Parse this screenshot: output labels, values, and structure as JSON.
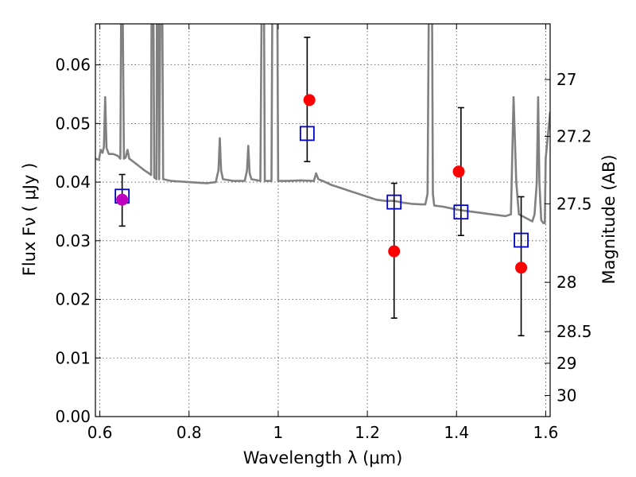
{
  "chart_data": {
    "type": "scatter",
    "xlabel": "Wavelength  λ (μm)",
    "ylabel": "Flux  Fν  ( μJy )",
    "right_ylabel": "Magnitude (AB)",
    "xlim": [
      0.59,
      1.61
    ],
    "ylim": [
      0.0,
      0.067
    ],
    "x_ticks": [
      0.6,
      0.8,
      1.0,
      1.2,
      1.4,
      1.6
    ],
    "x_tick_labels": [
      "0.6",
      "0.8",
      "1",
      "1.2",
      "1.4",
      "1.6"
    ],
    "y_ticks": [
      0.0,
      0.01,
      0.02,
      0.03,
      0.04,
      0.05,
      0.06
    ],
    "y_tick_labels": [
      "0.00",
      "0.01",
      "0.02",
      "0.03",
      "0.04",
      "0.05",
      "0.06"
    ],
    "right_ticks": [
      {
        "label": "27",
        "flux": 0.0575
      },
      {
        "label": "27.2",
        "flux": 0.0478
      },
      {
        "label": "27.5",
        "flux": 0.0363
      },
      {
        "label": "28",
        "flux": 0.0229
      },
      {
        "label": "28.5",
        "flux": 0.0145
      },
      {
        "label": "29",
        "flux": 0.0091
      },
      {
        "label": "30",
        "flux": 0.0036
      }
    ],
    "grid": true,
    "series": [
      {
        "marker": "circle",
        "color": "#ff0000",
        "points": [
          {
            "x": 0.65,
            "y": 0.037,
            "color": "#bf00bf"
          },
          {
            "x": 1.07,
            "y": 0.054
          },
          {
            "x": 1.26,
            "y": 0.0282
          },
          {
            "x": 1.405,
            "y": 0.0418
          },
          {
            "x": 1.545,
            "y": 0.0254
          }
        ]
      },
      {
        "marker": "square",
        "color": "#0000cc",
        "points": [
          {
            "x": 0.65,
            "y": 0.0376,
            "err_lo": 0.0325,
            "err_hi": 0.0413
          },
          {
            "x": 1.065,
            "y": 0.0483,
            "err_lo": 0.0435,
            "err_hi": 0.0647
          },
          {
            "x": 1.26,
            "y": 0.0366,
            "err_lo": 0.0168,
            "err_hi": 0.0398
          },
          {
            "x": 1.41,
            "y": 0.0349,
            "err_lo": 0.0309,
            "err_hi": 0.0527
          },
          {
            "x": 1.545,
            "y": 0.0301,
            "err_lo": 0.0138,
            "err_hi": 0.0375
          }
        ]
      },
      {
        "marker": "line",
        "color": "#808080",
        "points": [
          [
            0.59,
            0.044
          ],
          [
            0.598,
            0.0438
          ],
          [
            0.602,
            0.0455
          ],
          [
            0.606,
            0.045
          ],
          [
            0.609,
            0.046
          ],
          [
            0.612,
            0.0545
          ],
          [
            0.615,
            0.0458
          ],
          [
            0.62,
            0.0448
          ],
          [
            0.63,
            0.0448
          ],
          [
            0.64,
            0.0445
          ],
          [
            0.646,
            0.044
          ],
          [
            0.648,
            0.072
          ],
          [
            0.651,
            0.072
          ],
          [
            0.654,
            0.044
          ],
          [
            0.658,
            0.0442
          ],
          [
            0.662,
            0.0455
          ],
          [
            0.666,
            0.044
          ],
          [
            0.68,
            0.0432
          ],
          [
            0.69,
            0.0426
          ],
          [
            0.7,
            0.042
          ],
          [
            0.71,
            0.0415
          ],
          [
            0.715,
            0.0412
          ],
          [
            0.716,
            0.072
          ],
          [
            0.72,
            0.072
          ],
          [
            0.722,
            0.0408
          ],
          [
            0.727,
            0.0405
          ],
          [
            0.728,
            0.072
          ],
          [
            0.731,
            0.072
          ],
          [
            0.733,
            0.0405
          ],
          [
            0.736,
            0.072
          ],
          [
            0.74,
            0.072
          ],
          [
            0.742,
            0.0405
          ],
          [
            0.76,
            0.0402
          ],
          [
            0.78,
            0.0401
          ],
          [
            0.8,
            0.04
          ],
          [
            0.82,
            0.0399
          ],
          [
            0.84,
            0.0398
          ],
          [
            0.86,
            0.04
          ],
          [
            0.866,
            0.042
          ],
          [
            0.869,
            0.0475
          ],
          [
            0.872,
            0.042
          ],
          [
            0.876,
            0.0405
          ],
          [
            0.9,
            0.0402
          ],
          [
            0.925,
            0.0402
          ],
          [
            0.93,
            0.042
          ],
          [
            0.933,
            0.0462
          ],
          [
            0.936,
            0.0415
          ],
          [
            0.94,
            0.0405
          ],
          [
            0.96,
            0.0402
          ],
          [
            0.963,
            0.072
          ],
          [
            0.968,
            0.072
          ],
          [
            0.97,
            0.0402
          ],
          [
            0.985,
            0.0402
          ],
          [
            0.987,
            0.072
          ],
          [
            0.998,
            0.072
          ],
          [
            1.0,
            0.0402
          ],
          [
            1.02,
            0.0402
          ],
          [
            1.05,
            0.0403
          ],
          [
            1.08,
            0.0402
          ],
          [
            1.085,
            0.0415
          ],
          [
            1.09,
            0.0405
          ],
          [
            1.1,
            0.0402
          ],
          [
            1.12,
            0.0395
          ],
          [
            1.14,
            0.039
          ],
          [
            1.16,
            0.0385
          ],
          [
            1.18,
            0.038
          ],
          [
            1.2,
            0.0375
          ],
          [
            1.22,
            0.037
          ],
          [
            1.24,
            0.0368
          ],
          [
            1.26,
            0.0368
          ],
          [
            1.28,
            0.0365
          ],
          [
            1.3,
            0.0363
          ],
          [
            1.32,
            0.0362
          ],
          [
            1.33,
            0.0362
          ],
          [
            1.335,
            0.038
          ],
          [
            1.338,
            0.072
          ],
          [
            1.345,
            0.072
          ],
          [
            1.347,
            0.038
          ],
          [
            1.35,
            0.036
          ],
          [
            1.37,
            0.0358
          ],
          [
            1.39,
            0.0355
          ],
          [
            1.41,
            0.0352
          ],
          [
            1.43,
            0.035
          ],
          [
            1.45,
            0.0348
          ],
          [
            1.47,
            0.0346
          ],
          [
            1.49,
            0.0344
          ],
          [
            1.51,
            0.0342
          ],
          [
            1.522,
            0.0345
          ],
          [
            1.528,
            0.0545
          ],
          [
            1.534,
            0.04
          ],
          [
            1.54,
            0.0345
          ],
          [
            1.56,
            0.0337
          ],
          [
            1.57,
            0.0333
          ],
          [
            1.575,
            0.0345
          ],
          [
            1.58,
            0.04
          ],
          [
            1.583,
            0.0545
          ],
          [
            1.586,
            0.04
          ],
          [
            1.59,
            0.0335
          ],
          [
            1.595,
            0.033
          ],
          [
            1.598,
            0.033
          ],
          [
            1.6,
            0.044
          ],
          [
            1.605,
            0.048
          ],
          [
            1.61,
            0.052
          ]
        ]
      }
    ]
  }
}
